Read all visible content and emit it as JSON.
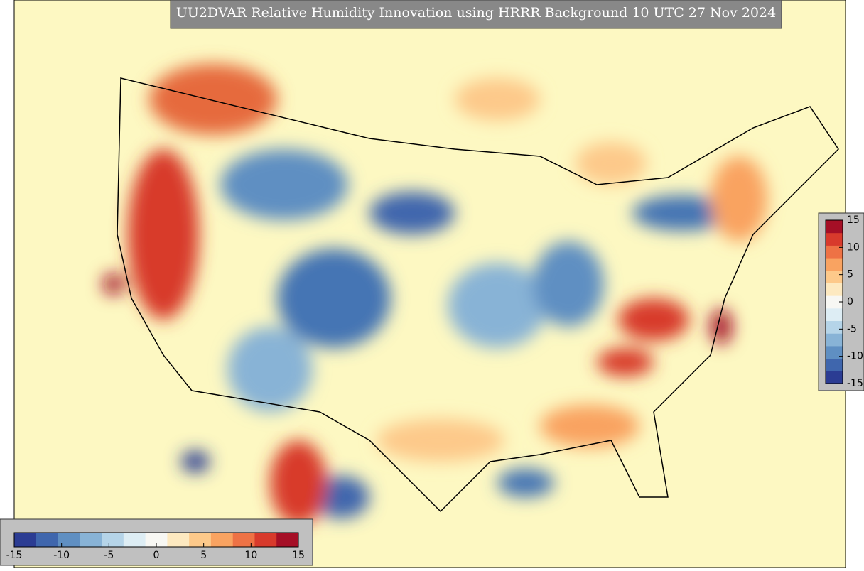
{
  "title": "UU2DVAR Relative Humidity Innovation using HRRR Background 10 UTC 27 Nov 2024",
  "colorbars": [
    {
      "orientation": "vertical",
      "lim": [
        -15,
        15
      ],
      "ticks": [
        -15,
        -10,
        -5,
        0,
        5,
        10,
        15
      ]
    },
    {
      "orientation": "horizontal",
      "lim": [
        -15,
        15
      ],
      "ticks": [
        -15,
        -10,
        -5,
        0,
        5,
        10,
        15
      ]
    }
  ],
  "colors": [
    "#2b3c93",
    "#3f66ad",
    "#5f8fc2",
    "#88b3d6",
    "#b5d4e8",
    "#ddedf4",
    "#f7f7f3",
    "#fde9c0",
    "#fdc98a",
    "#f9a361",
    "#ee7245",
    "#d83a2c",
    "#a50f26"
  ]
}
